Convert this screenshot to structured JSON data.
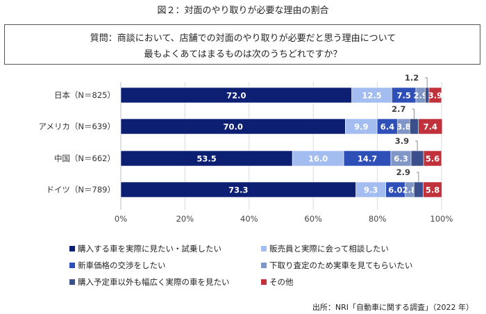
{
  "figure_title": "図２：対面のやり取りが必要な理由の割合",
  "question": {
    "line1": "質問：商談において、店舗での対面のやり取りが必要だと思う理由について",
    "line2": "最もよくあてはまるものは次のうちどれですか？"
  },
  "source": "出所：NRI「自動車に関する調査」（2022 年）",
  "chart_data": {
    "type": "bar",
    "orientation": "horizontal",
    "stacked": true,
    "categories": [
      "日本（N＝825）",
      "アメリカ（N＝639）",
      "中国（N＝662）",
      "ドイツ（N＝789）"
    ],
    "series": [
      {
        "name": "購入する車を実際に見たい・試乗したい",
        "color": "#0d1f73",
        "values": [
          72.0,
          70.0,
          53.5,
          73.3
        ],
        "labels": [
          "72.0",
          "70.0",
          "53.5",
          "73.3"
        ]
      },
      {
        "name": "販売員と実際に会って相談したい",
        "color": "#a3bdf0",
        "values": [
          12.5,
          9.9,
          16.0,
          9.3
        ],
        "labels": [
          "12.5",
          "9.9",
          "16.0",
          "9.3"
        ]
      },
      {
        "name": "新車価格の交渉をしたい",
        "color": "#2f4fb8",
        "values": [
          7.5,
          6.4,
          14.7,
          6.0
        ],
        "labels": [
          "7.5",
          "6.4",
          "14.7",
          "6.0"
        ]
      },
      {
        "name": "下取り査定のため実車を見てもらいたい",
        "color": "#7f96c7",
        "values": [
          2.9,
          3.8,
          6.3,
          2.8
        ],
        "labels": [
          "2.9",
          "3.8",
          "6.3",
          "2.8"
        ]
      },
      {
        "name": "購入予定車以外も幅広く実際の車を見たい",
        "color": "#3b4f8c",
        "values": [
          1.2,
          2.7,
          3.9,
          2.9
        ],
        "labels": [
          "1.2",
          "2.7",
          "3.9",
          "2.9"
        ]
      },
      {
        "name": "その他",
        "color": "#c0313b",
        "values": [
          3.9,
          7.4,
          5.6,
          5.8
        ],
        "labels": [
          "3.9",
          "7.4",
          "5.6",
          "5.8"
        ]
      }
    ],
    "xlim": [
      0,
      100
    ],
    "x_ticks": [
      "0%",
      "20%",
      "40%",
      "60%",
      "80%",
      "100%"
    ],
    "legend_position": "bottom",
    "grid": "vertical"
  }
}
